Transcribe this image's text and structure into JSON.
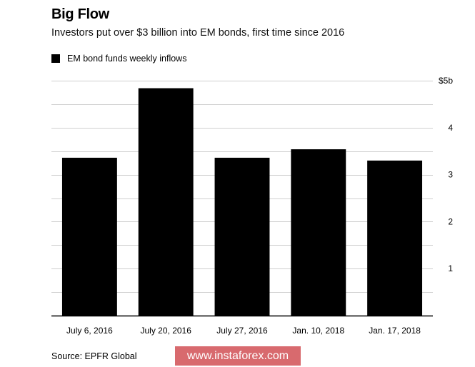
{
  "title": "Big Flow",
  "subtitle": "Investors put over $3 billion into EM bonds, first time since 2016",
  "legend": {
    "label": "EM bond funds weekly inflows"
  },
  "source": "Source: EPFR Global",
  "watermark": "www.instaforex.com",
  "colors": {
    "bar": "#000000",
    "grid": "#cfcfcf",
    "axis": "#000000",
    "watermark_bg": "#d86a6e"
  },
  "chart_data": {
    "type": "bar",
    "title": "Big Flow",
    "subtitle": "Investors put over $3 billion into EM bonds, first time since 2016",
    "categories": [
      "July 6, 2016",
      "July 20, 2016",
      "July 27, 2016",
      "Jan. 10, 2018",
      "Jan. 17, 2018"
    ],
    "series": [
      {
        "name": "EM bond funds weekly inflows",
        "values": [
          3.36,
          4.84,
          3.36,
          3.54,
          3.3
        ]
      }
    ],
    "xlabel": "",
    "ylabel": "",
    "ylim": [
      0,
      5
    ],
    "yticks": [
      1,
      2,
      3,
      4,
      5
    ],
    "ytick_labels": [
      "1",
      "2",
      "3",
      "4",
      "$5b"
    ],
    "grid_step": 0.5,
    "legend_position": "top-left",
    "axis_side": "right"
  }
}
